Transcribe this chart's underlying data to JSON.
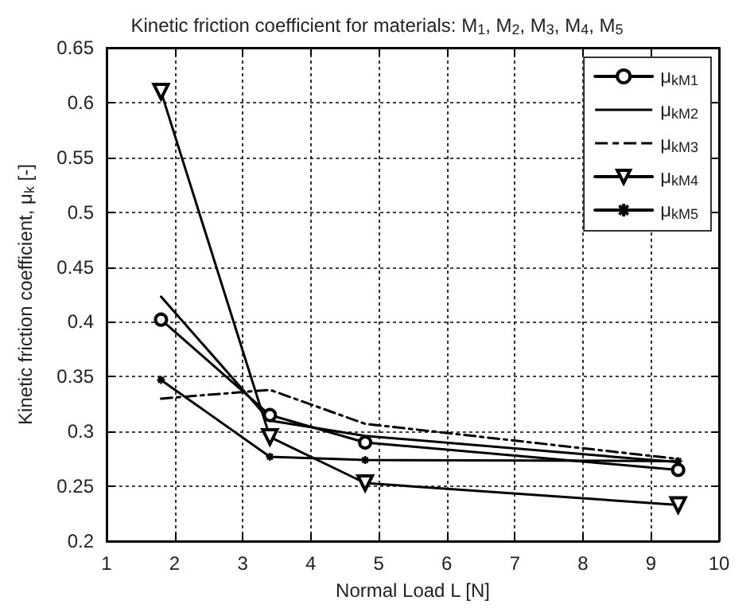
{
  "chart_data": {
    "type": "line",
    "title": "Kinetic friction coefficient for materials: M$_{1}$, M$_{2}$, M$_{3}$, M$_{4}$, M$_{5}$",
    "xlabel": "Normal Load L [N]",
    "ylabel": "Kinetic friction coefficient, μ$_{k}$ [-]",
    "x": [
      1.8,
      3.4,
      4.8,
      9.4
    ],
    "series": [
      {
        "name": "μ$_{kM1}$",
        "color": "#000000",
        "marker": "circle",
        "line_style": "solid",
        "values": [
          0.402,
          0.315,
          0.29,
          0.265
        ]
      },
      {
        "name": "μ$_{kM2}$",
        "color": "#000000",
        "marker": "none",
        "line_style": "solid",
        "values": [
          0.423,
          0.31,
          0.296,
          0.272
        ]
      },
      {
        "name": "μ$_{kM3}$",
        "color": "#000000",
        "marker": "none",
        "line_style": "dashed",
        "values": [
          0.33,
          0.338,
          0.307,
          0.275
        ]
      },
      {
        "name": "μ$_{kM4}$",
        "color": "#000000",
        "marker": "triangle",
        "line_style": "solid",
        "values": [
          0.61,
          0.295,
          0.253,
          0.233
        ]
      },
      {
        "name": "μ$_{kM5}$",
        "color": "#000000",
        "marker": "cross",
        "line_style": "solid",
        "values": [
          0.347,
          0.277,
          0.274,
          0.273
        ]
      }
    ],
    "xlim": [
      1,
      10
    ],
    "xticks": [
      1,
      2,
      3,
      4,
      5,
      6,
      7,
      8,
      9,
      10
    ],
    "ylim": [
      0.2,
      0.65
    ],
    "yticks": [
      0.2,
      0.25,
      0.3,
      0.35,
      0.4,
      0.45,
      0.5,
      0.55,
      0.6,
      0.65
    ],
    "grid": true,
    "legend": "top right"
  }
}
